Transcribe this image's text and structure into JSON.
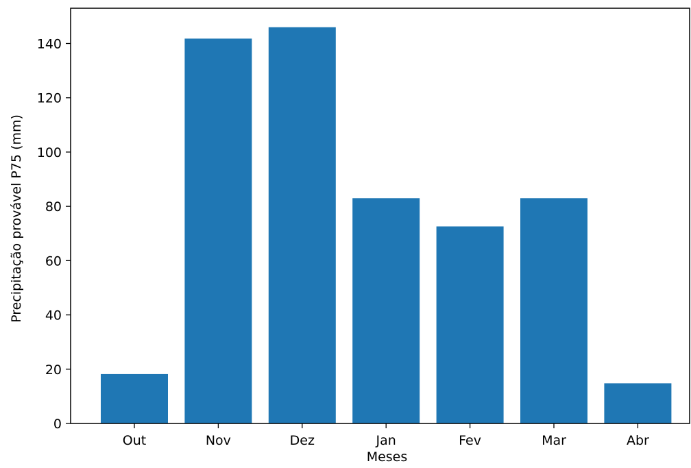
{
  "chart_data": {
    "type": "bar",
    "categories": [
      "Out",
      "Nov",
      "Dez",
      "Jan",
      "Fev",
      "Mar",
      "Abr"
    ],
    "values": [
      18.2,
      141.8,
      146.0,
      83.0,
      72.6,
      83.0,
      14.8
    ],
    "xlabel": "Meses",
    "ylabel": "Precipitação provável P75 (mm)",
    "ylim": [
      0,
      153
    ],
    "yticks": [
      0,
      20,
      40,
      60,
      80,
      100,
      120,
      140
    ],
    "grid": false,
    "bar_color": "#1f77b4"
  }
}
